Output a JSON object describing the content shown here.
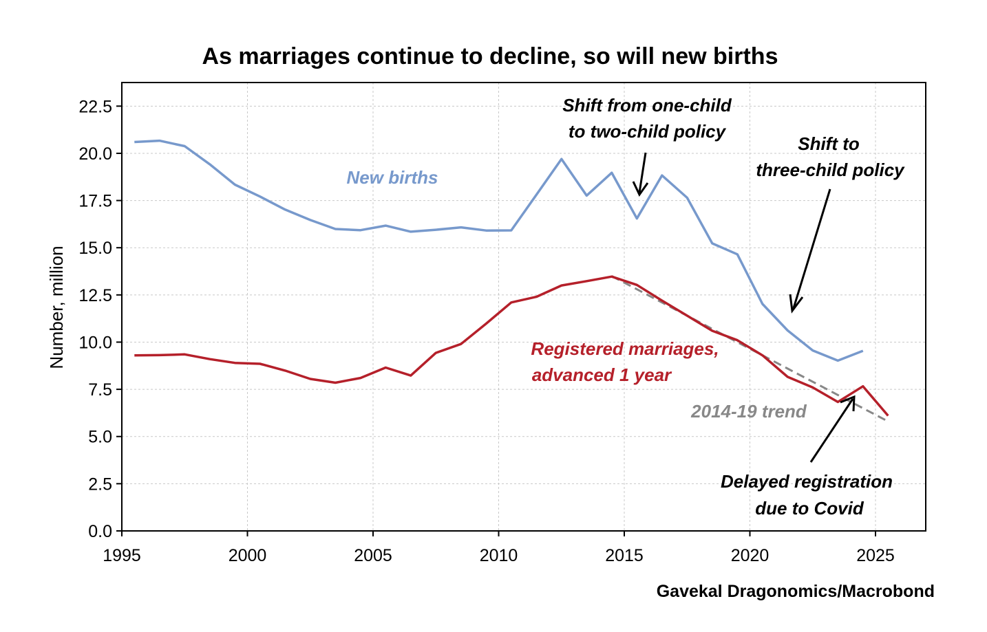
{
  "chart_data": {
    "type": "line",
    "title": "As marriages continue to decline, so will new births",
    "xlabel": "",
    "ylabel": "Number, million",
    "xlim": [
      1995,
      2027
    ],
    "ylim": [
      0,
      23.75
    ],
    "xticks": [
      1995,
      2000,
      2005,
      2010,
      2015,
      2020,
      2025
    ],
    "xtick_labels": [
      "1995",
      "2000",
      "2005",
      "2010",
      "2015",
      "2020",
      "2025"
    ],
    "yticks": [
      0,
      2.5,
      5,
      7.5,
      10,
      12.5,
      15,
      17.5,
      20,
      22.5
    ],
    "ytick_labels": [
      "0.0",
      "2.5",
      "5.0",
      "7.5",
      "10.0",
      "12.5",
      "15.0",
      "17.5",
      "20.0",
      "22.5"
    ],
    "grid": true,
    "legend": "none",
    "series": [
      {
        "name": "New births",
        "color": "#7799cc",
        "style": "solid",
        "x": [
          1995.5,
          1996.5,
          1997.5,
          1998.5,
          1999.5,
          2000.5,
          2001.5,
          2002.5,
          2003.5,
          2004.5,
          2005.5,
          2006.5,
          2007.5,
          2008.5,
          2009.5,
          2010.5,
          2011.5,
          2012.5,
          2013.5,
          2014.5,
          2015.5,
          2016.5,
          2017.5,
          2018.5,
          2019.5,
          2020.5,
          2021.5,
          2022.5,
          2023.5,
          2024.5
        ],
        "y": [
          20.6,
          20.67,
          20.38,
          19.42,
          18.34,
          17.71,
          17.02,
          16.47,
          15.99,
          15.93,
          16.17,
          15.85,
          15.95,
          16.08,
          15.91,
          15.92,
          17.8,
          19.7,
          17.76,
          18.97,
          16.55,
          18.83,
          17.65,
          15.23,
          14.65,
          12.02,
          10.62,
          9.56,
          9.02,
          9.54
        ]
      },
      {
        "name": "Registered marriages, advanced 1 year",
        "color": "#b5202a",
        "style": "solid",
        "x": [
          1995.5,
          1996.5,
          1997.5,
          1998.5,
          1999.5,
          2000.5,
          2001.5,
          2002.5,
          2003.5,
          2004.5,
          2005.5,
          2006.5,
          2007.5,
          2008.5,
          2009.5,
          2010.5,
          2011.5,
          2012.5,
          2013.5,
          2014.5,
          2015.5,
          2016.5,
          2017.5,
          2018.5,
          2019.5,
          2020.5,
          2021.5,
          2022.5,
          2023.5,
          2024.5,
          2025.5
        ],
        "y": [
          9.3,
          9.31,
          9.35,
          9.1,
          8.9,
          8.85,
          8.49,
          8.05,
          7.85,
          8.1,
          8.65,
          8.23,
          9.43,
          9.9,
          10.98,
          12.1,
          12.4,
          13.0,
          13.23,
          13.47,
          13.03,
          12.2,
          11.4,
          10.6,
          10.1,
          9.3,
          8.16,
          7.6,
          6.83,
          7.66,
          6.1
        ]
      },
      {
        "name": "2014-19 trend",
        "color": "#888888",
        "style": "dashed",
        "x": [
          2014.5,
          2025.5
        ],
        "y": [
          13.5,
          5.8
        ]
      }
    ],
    "annotations": [
      {
        "text": "New births",
        "color": "#7799cc"
      },
      {
        "text": "Registered marriages,",
        "color": "#b5202a"
      },
      {
        "text": "advanced 1 year",
        "color": "#b5202a"
      },
      {
        "text": "2014-19 trend",
        "color": "#888888"
      },
      {
        "text": "Shift from one-child",
        "color": "#000000"
      },
      {
        "text": "to two-child policy",
        "color": "#000000"
      },
      {
        "text": "Shift to",
        "color": "#000000"
      },
      {
        "text": "three-child policy",
        "color": "#000000"
      },
      {
        "text": "Delayed registration",
        "color": "#000000"
      },
      {
        "text": "due to Covid",
        "color": "#000000"
      }
    ],
    "source": "Gavekal Dragonomics/Macrobond"
  }
}
